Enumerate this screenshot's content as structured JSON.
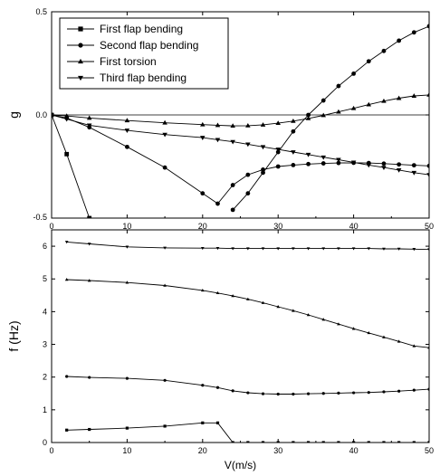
{
  "chart_data": [
    {
      "type": "line",
      "title": "",
      "xlabel": "",
      "ylabel": "g",
      "xlim": [
        0,
        50
      ],
      "ylim": [
        -0.5,
        0.5
      ],
      "xticks": [
        "0",
        "10",
        "20",
        "30",
        "40",
        "50"
      ],
      "yticks": [
        "0.5",
        "0.0",
        "-0.5"
      ],
      "zero_line": true,
      "grid": false,
      "legend": {
        "placement": "top-left"
      },
      "series": [
        {
          "name": "First flap bending",
          "marker": "square",
          "x": [
            0,
            2,
            5
          ],
          "y": [
            0.0,
            -0.19,
            -0.5
          ]
        },
        {
          "name": "Second flap bending",
          "marker": "circle",
          "x": [
            0,
            2,
            5,
            10,
            15,
            20,
            22,
            24,
            26,
            28,
            30,
            32,
            34,
            36,
            38,
            40,
            42,
            44,
            46,
            48,
            50
          ],
          "y": [
            0.0,
            -0.015,
            -0.06,
            -0.155,
            -0.255,
            -0.38,
            -0.43,
            -0.34,
            -0.29,
            -0.265,
            -0.25,
            -0.243,
            -0.238,
            -0.235,
            -0.233,
            -0.232,
            -0.233,
            -0.236,
            -0.24,
            -0.244,
            -0.247
          ]
        },
        {
          "name": "First torsion",
          "marker": "triangle-up",
          "x": [
            0,
            2,
            5,
            10,
            15,
            20,
            22,
            24,
            26,
            28,
            30,
            32,
            34,
            36,
            38,
            40,
            42,
            44,
            46,
            48,
            50
          ],
          "y": [
            0.0,
            -0.005,
            -0.015,
            -0.027,
            -0.038,
            -0.047,
            -0.05,
            -0.053,
            -0.052,
            -0.048,
            -0.04,
            -0.03,
            -0.017,
            -0.002,
            0.015,
            0.032,
            0.05,
            0.067,
            0.081,
            0.092,
            0.097
          ]
        },
        {
          "name": "Third flap bending",
          "marker": "triangle-down",
          "x": [
            0,
            2,
            5,
            10,
            15,
            20,
            22,
            24,
            26,
            28,
            30,
            32,
            34,
            36,
            38,
            40,
            42,
            44,
            46,
            48,
            50
          ],
          "y": [
            0.0,
            -0.02,
            -0.05,
            -0.075,
            -0.095,
            -0.11,
            -0.12,
            -0.13,
            -0.142,
            -0.155,
            -0.167,
            -0.18,
            -0.192,
            -0.205,
            -0.217,
            -0.23,
            -0.243,
            -0.255,
            -0.267,
            -0.28,
            -0.29
          ]
        },
        {
          "name": "",
          "marker": "circle",
          "x": [
            24,
            26,
            28,
            30,
            32,
            34,
            36,
            38,
            40,
            42,
            44,
            46,
            48,
            50
          ],
          "y": [
            -0.46,
            -0.38,
            -0.28,
            -0.18,
            -0.08,
            0.0,
            0.07,
            0.14,
            0.2,
            0.26,
            0.31,
            0.36,
            0.4,
            0.43
          ]
        }
      ]
    },
    {
      "type": "line",
      "title": "",
      "xlabel": "V(m/s)",
      "ylabel": "f (Hz)",
      "xlim": [
        0,
        50
      ],
      "ylim": [
        0,
        6.5
      ],
      "xticks": [
        "0",
        "10",
        "20",
        "30",
        "40",
        "50"
      ],
      "yticks": [
        "0",
        "1",
        "2",
        "3",
        "4",
        "5",
        "6"
      ],
      "grid": false,
      "series": [
        {
          "name": "",
          "marker": "square",
          "x": [
            2,
            5,
            10,
            15,
            20,
            22,
            24,
            26,
            28,
            30,
            32,
            34,
            36,
            38,
            40,
            42,
            44,
            46,
            48,
            50
          ],
          "y": [
            0.38,
            0.4,
            0.44,
            0.5,
            0.6,
            0.6,
            0.0,
            0.0,
            0.0,
            0.0,
            0.0,
            0.0,
            0.0,
            0.0,
            0.0,
            0.0,
            0.0,
            0.0,
            0.0,
            0.0
          ]
        },
        {
          "name": "",
          "marker": "circle",
          "x": [
            2,
            5,
            10,
            15,
            20,
            22,
            24,
            26,
            28,
            30,
            32,
            34,
            36,
            38,
            40,
            42,
            44,
            46,
            48,
            50
          ],
          "y": [
            2.02,
            1.99,
            1.96,
            1.9,
            1.75,
            1.68,
            1.58,
            1.52,
            1.49,
            1.48,
            1.48,
            1.49,
            1.5,
            1.51,
            1.52,
            1.53,
            1.55,
            1.57,
            1.6,
            1.63
          ]
        },
        {
          "name": "",
          "marker": "triangle-up",
          "x": [
            2,
            5,
            10,
            15,
            20,
            22,
            24,
            26,
            28,
            30,
            32,
            34,
            36,
            38,
            40,
            42,
            44,
            46,
            48,
            50
          ],
          "y": [
            4.98,
            4.95,
            4.89,
            4.8,
            4.65,
            4.57,
            4.48,
            4.38,
            4.27,
            4.15,
            4.03,
            3.9,
            3.76,
            3.62,
            3.48,
            3.35,
            3.22,
            3.09,
            2.95,
            2.9
          ]
        },
        {
          "name": "",
          "marker": "triangle-down",
          "x": [
            2,
            5,
            10,
            15,
            20,
            22,
            24,
            26,
            28,
            30,
            32,
            34,
            36,
            38,
            40,
            42,
            44,
            46,
            48,
            50
          ],
          "y": [
            6.13,
            6.07,
            5.98,
            5.95,
            5.94,
            5.94,
            5.93,
            5.93,
            5.93,
            5.93,
            5.93,
            5.93,
            5.93,
            5.93,
            5.93,
            5.93,
            5.92,
            5.92,
            5.91,
            5.9
          ]
        }
      ]
    }
  ]
}
